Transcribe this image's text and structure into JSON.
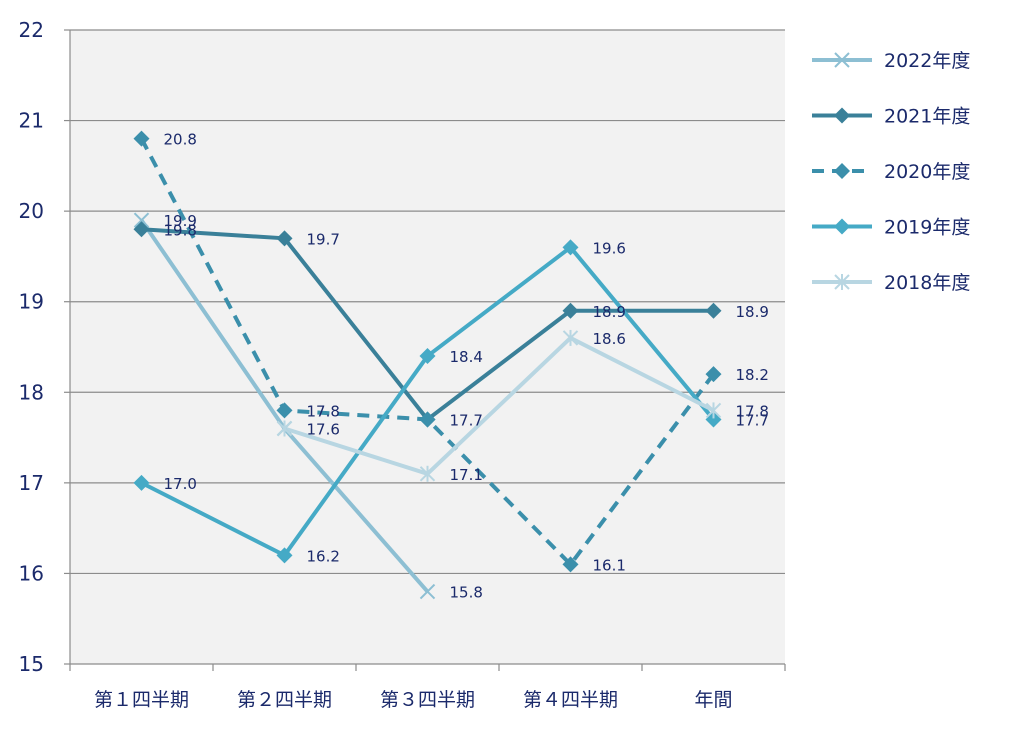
{
  "chart_data": {
    "type": "line",
    "categories": [
      "第１四半期",
      "第２四半期",
      "第３四半期",
      "第４四半期",
      "年間"
    ],
    "ylim": [
      15,
      22
    ],
    "yticks": [
      15,
      16,
      17,
      18,
      19,
      20,
      21,
      22
    ],
    "grid": true,
    "legend_position": "right",
    "series": [
      {
        "name": "2022年度",
        "values": [
          19.9,
          17.6,
          15.8,
          null,
          null
        ],
        "labels": [
          "19.9",
          "17.6",
          "15.8",
          "",
          ""
        ],
        "color": "#8dbfd3",
        "marker": "x",
        "dash": false
      },
      {
        "name": "2021年度",
        "values": [
          19.8,
          19.7,
          17.7,
          18.9,
          18.9
        ],
        "labels": [
          "19.8",
          "19.7",
          "17.7",
          "18.9",
          "18.9"
        ],
        "color": "#3a8099",
        "marker": "diamond",
        "dash": false
      },
      {
        "name": "2020年度",
        "values": [
          20.8,
          17.8,
          17.7,
          16.1,
          18.2
        ],
        "labels": [
          "20.8",
          "17.8",
          "",
          "16.1",
          "18.2"
        ],
        "color": "#3b8fab",
        "marker": "diamond",
        "dash": true
      },
      {
        "name": "2019年度",
        "values": [
          17.0,
          16.2,
          18.4,
          19.6,
          17.7
        ],
        "labels": [
          "17.0",
          "16.2",
          "18.4",
          "19.6",
          "17.7"
        ],
        "color": "#45aac6",
        "marker": "diamond",
        "dash": false
      },
      {
        "name": "2018年度",
        "values": [
          null,
          17.6,
          17.1,
          18.6,
          17.8
        ],
        "labels": [
          "",
          "",
          "17.1",
          "18.6",
          "17.8"
        ],
        "color": "#b8d6e2",
        "marker": "asterisk",
        "dash": false
      }
    ]
  }
}
